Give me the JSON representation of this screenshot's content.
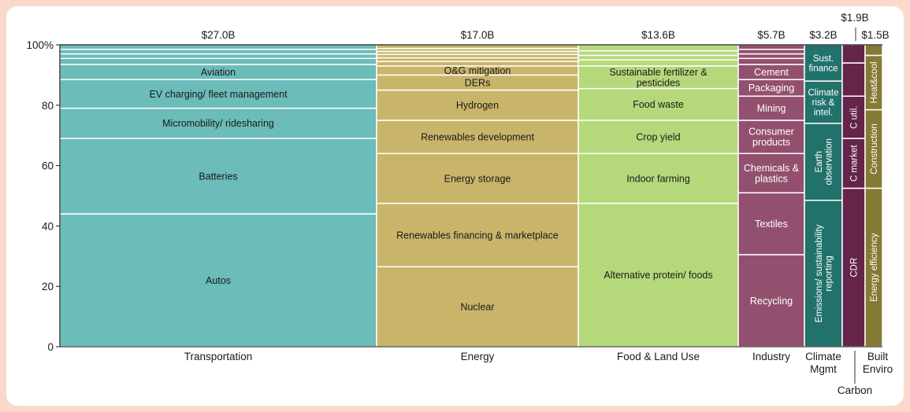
{
  "chart_data": {
    "type": "marimekko",
    "title": "",
    "xlabel": "",
    "ylabel": "",
    "ylim": [
      0,
      100
    ],
    "y_ticks": [
      "0",
      "20",
      "40",
      "60",
      "80",
      "100%"
    ],
    "grid": false,
    "colors": {
      "transportation": "#6cbcb9",
      "energy": "#c9b56a",
      "food": "#b5d97a",
      "industry": "#93506e",
      "climate": "#22726c",
      "carbon": "#65244a",
      "built": "#857a35"
    },
    "columns": [
      {
        "id": "transportation",
        "label": "Transportation",
        "total": "$27.0B",
        "total_value": 27.0,
        "segments": [
          {
            "label": "Autos",
            "value": 44
          },
          {
            "label": "Batteries",
            "value": 25
          },
          {
            "label": "Micromobility/ ridesharing",
            "value": 10
          },
          {
            "label": "EV charging/ fleet management",
            "value": 9.5
          },
          {
            "label": "Aviation",
            "value": 5
          },
          {
            "label": "",
            "value": 2
          },
          {
            "label": "",
            "value": 1.5
          },
          {
            "label": "",
            "value": 1.5
          },
          {
            "label": "",
            "value": 1.5
          }
        ]
      },
      {
        "id": "energy",
        "label": "Energy",
        "total": "$17.0B",
        "total_value": 17.0,
        "segments": [
          {
            "label": "Nuclear",
            "value": 26.5
          },
          {
            "label": "Renewables financing & marketplace",
            "value": 21
          },
          {
            "label": "Energy storage",
            "value": 16.5
          },
          {
            "label": "Renewables development",
            "value": 11
          },
          {
            "label": "Hydrogen",
            "value": 10
          },
          {
            "label": "DERs",
            "value": 5
          },
          {
            "label": "O&G mitigation",
            "value": 3
          },
          {
            "label": "",
            "value": 1.5
          },
          {
            "label": "",
            "value": 1.2
          },
          {
            "label": "",
            "value": 1.1
          },
          {
            "label": "",
            "value": 1
          },
          {
            "label": "",
            "value": 1
          },
          {
            "label": "",
            "value": 1.2
          }
        ]
      },
      {
        "id": "food",
        "label": "Food & Land Use",
        "total": "$13.6B",
        "total_value": 13.6,
        "segments": [
          {
            "label": "Alternative protein/ foods",
            "value": 47.5
          },
          {
            "label": "Indoor farming",
            "value": 16.5
          },
          {
            "label": "Crop yield",
            "value": 11
          },
          {
            "label": "Food waste",
            "value": 10.5
          },
          {
            "label": "Sustainable fertilizer & pesticides",
            "value": 7.5
          },
          {
            "label": "",
            "value": 2
          },
          {
            "label": "",
            "value": 1.5
          },
          {
            "label": "",
            "value": 1.5
          },
          {
            "label": "",
            "value": 2
          }
        ]
      },
      {
        "id": "industry",
        "label": "Industry",
        "total": "$5.7B",
        "total_value": 5.7,
        "segments": [
          {
            "label": "Recycling",
            "value": 30.5
          },
          {
            "label": "Textiles",
            "value": 20.5
          },
          {
            "label": "Chemicals & plastics",
            "value": 13
          },
          {
            "label": "Consumer products",
            "value": 11
          },
          {
            "label": "Mining",
            "value": 8
          },
          {
            "label": "Packaging",
            "value": 5.5
          },
          {
            "label": "Cement",
            "value": 5
          },
          {
            "label": "",
            "value": 2
          },
          {
            "label": "",
            "value": 1.5
          },
          {
            "label": "",
            "value": 1.5
          },
          {
            "label": "",
            "value": 1.5
          }
        ]
      },
      {
        "id": "climate",
        "label": "Climate Mgmt",
        "total": "$3.2B",
        "total_value": 3.2,
        "segments": [
          {
            "label": "Emissions/ sustainability reporting",
            "value": 48.5,
            "vertical": true
          },
          {
            "label": "Earth observation",
            "value": 25.5,
            "vertical": true
          },
          {
            "label": "Climate risk & intel.",
            "value": 14
          },
          {
            "label": "Sust. finance",
            "value": 12
          }
        ]
      },
      {
        "id": "carbon",
        "label": "Carbon",
        "total": "$1.9B",
        "total_value": 1.9,
        "segments": [
          {
            "label": "CDR",
            "value": 52.5,
            "vertical": true
          },
          {
            "label": "C market",
            "value": 16.5,
            "vertical": true
          },
          {
            "label": "C util.",
            "value": 14,
            "vertical": true
          },
          {
            "label": "",
            "value": 11
          },
          {
            "label": "",
            "value": 6
          }
        ]
      },
      {
        "id": "built",
        "label": "Built Enviro",
        "total": "$1.5B",
        "total_value": 1.5,
        "segments": [
          {
            "label": "Energy efficiency",
            "value": 52.5,
            "vertical": true
          },
          {
            "label": "Construction",
            "value": 26,
            "vertical": true
          },
          {
            "label": "Heat&cool",
            "value": 18,
            "vertical": true
          },
          {
            "label": "",
            "value": 3.5
          }
        ]
      }
    ]
  }
}
